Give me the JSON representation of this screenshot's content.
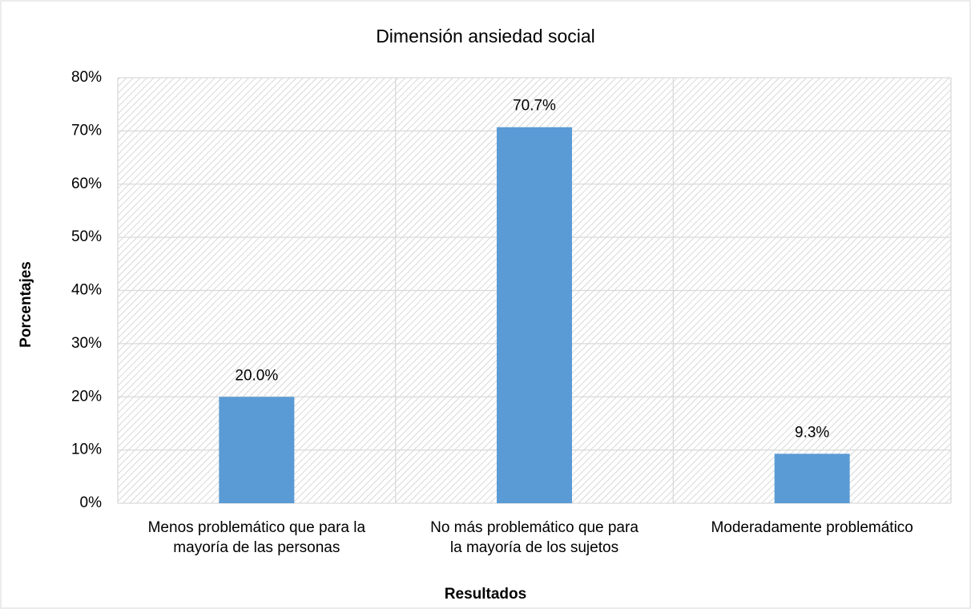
{
  "chart_data": {
    "type": "bar",
    "title": "Dimensión ansiedad social",
    "x_label": "Resultados",
    "y_label": "Porcentajes",
    "categories": [
      [
        "Menos problemático que para la",
        "mayoría de las personas"
      ],
      [
        "No más problemático que para",
        "la mayoría de los sujetos"
      ],
      [
        "Moderadamente problemático"
      ]
    ],
    "values": [
      20.0,
      70.7,
      9.3
    ],
    "value_labels": [
      "20.0%",
      "70.7%",
      "9.3%"
    ],
    "color": "#5b9bd5",
    "ylim": [
      0,
      80
    ],
    "yticks": [
      {
        "value": 0,
        "label": "0%"
      },
      {
        "value": 10,
        "label": "10%"
      },
      {
        "value": 20,
        "label": "20%"
      },
      {
        "value": 30,
        "label": "30%"
      },
      {
        "value": 40,
        "label": "40%"
      },
      {
        "value": 50,
        "label": "50%"
      },
      {
        "value": 60,
        "label": "60%"
      },
      {
        "value": 70,
        "label": "70%"
      },
      {
        "value": 80,
        "label": "80%"
      }
    ],
    "grid": true
  }
}
